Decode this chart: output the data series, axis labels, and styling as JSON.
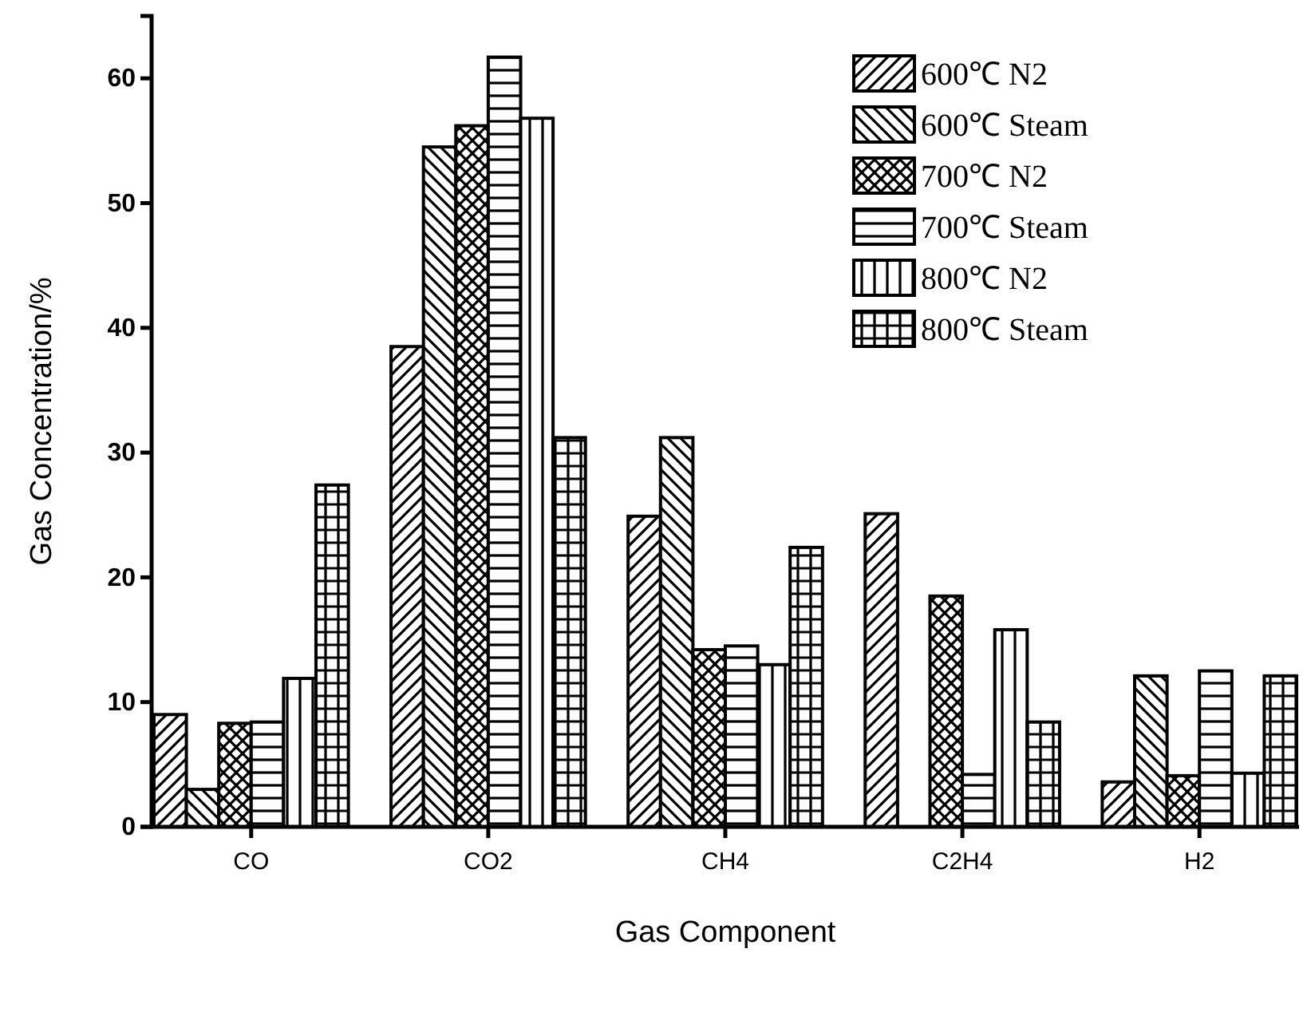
{
  "chart_data": {
    "type": "bar",
    "xlabel": "Gas Component",
    "ylabel": "Gas Concentration/%",
    "categories": [
      "CO",
      "CO2",
      "CH4",
      "C2H4",
      "H2"
    ],
    "series": [
      {
        "name": "600℃ N2",
        "color": "#000000",
        "values": [
          9,
          38.5,
          24.9,
          25.1,
          3.6
        ]
      },
      {
        "name": "600℃ Steam",
        "color": "#000000",
        "values": [
          3,
          54.5,
          31.2,
          0,
          12.1
        ]
      },
      {
        "name": "700℃ N2",
        "color": "#000000",
        "values": [
          8.3,
          56.2,
          14.2,
          18.5,
          4.1
        ]
      },
      {
        "name": "700℃ Steam",
        "color": "#000000",
        "values": [
          8.4,
          61.7,
          14.5,
          4.2,
          12.5
        ]
      },
      {
        "name": "800℃ N2",
        "color": "#000000",
        "values": [
          11.9,
          56.8,
          13,
          15.8,
          4.3
        ]
      },
      {
        "name": "800℃ Steam",
        "color": "#000000",
        "values": [
          27.4,
          31.2,
          22.4,
          8.4,
          12.1
        ]
      }
    ],
    "ylim": [
      0,
      65
    ],
    "yticks": [
      0,
      10,
      20,
      30,
      40,
      50,
      60
    ],
    "grid": false,
    "legend": "top right"
  }
}
